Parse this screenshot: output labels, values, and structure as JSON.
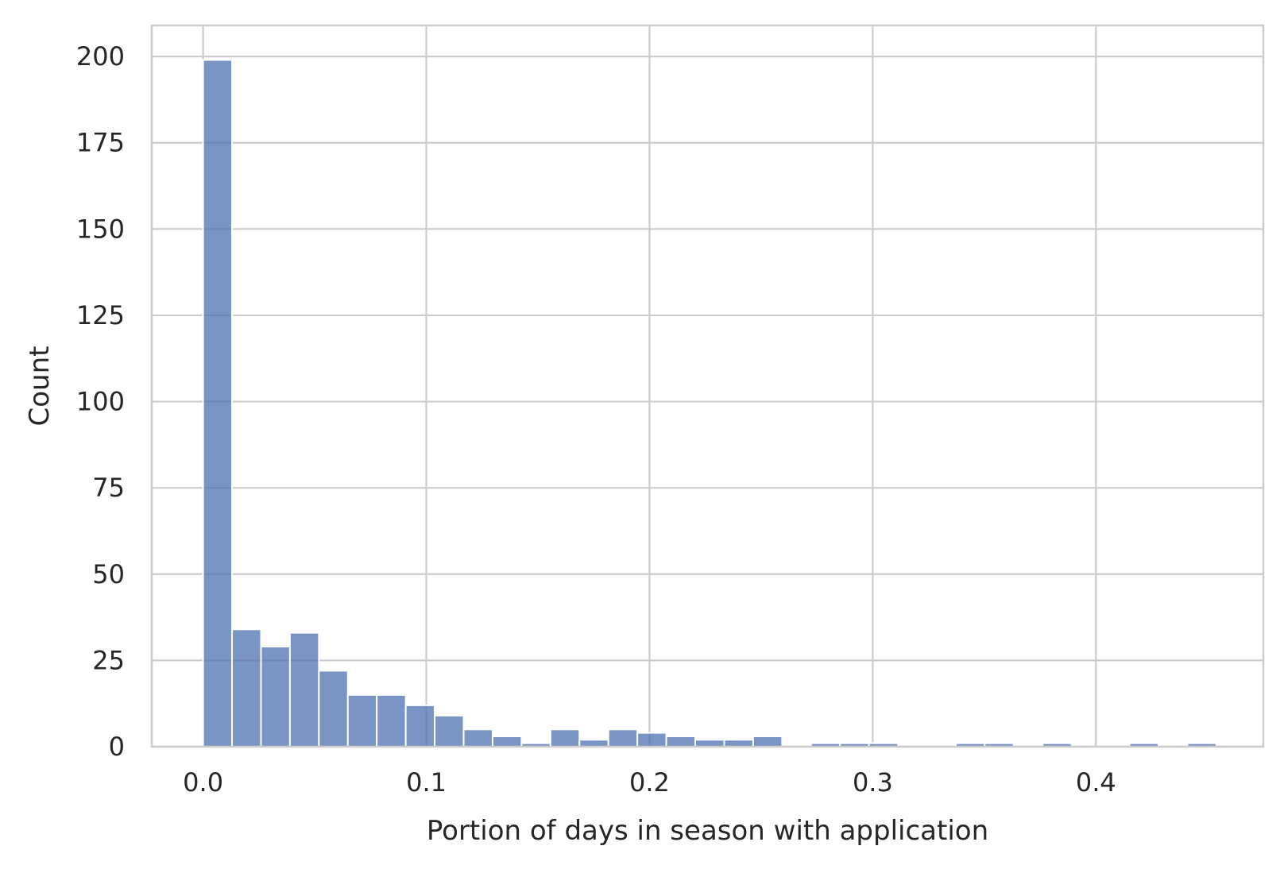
{
  "chart_data": {
    "type": "bar",
    "xlabel": "Portion of days in season with application",
    "ylabel": "Count",
    "xlim": [
      -0.023,
      0.475
    ],
    "ylim": [
      0,
      209
    ],
    "xticks": [
      0.0,
      0.1,
      0.2,
      0.3,
      0.4
    ],
    "xtick_labels": [
      "0.0",
      "0.1",
      "0.2",
      "0.3",
      "0.4"
    ],
    "yticks": [
      0,
      25,
      50,
      75,
      100,
      125,
      150,
      175,
      200
    ],
    "ytick_labels": [
      "0",
      "25",
      "50",
      "75",
      "100",
      "125",
      "150",
      "175",
      "200"
    ],
    "grid": true,
    "bin_start": 0.0,
    "bin_width": 0.01297,
    "values": [
      199,
      34,
      29,
      33,
      22,
      15,
      15,
      12,
      9,
      5,
      3,
      1,
      5,
      2,
      5,
      4,
      3,
      2,
      2,
      3,
      0,
      1,
      1,
      1,
      0,
      0,
      1,
      1,
      0,
      1,
      0,
      0,
      1,
      0,
      1
    ],
    "bar_color": "#4c72b0",
    "grid_color": "#cccccc",
    "spine_color": "#cccccc"
  }
}
